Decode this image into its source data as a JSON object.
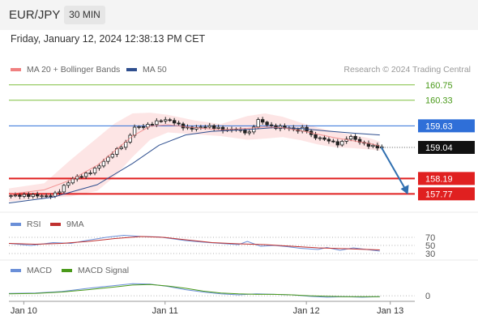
{
  "header": {
    "symbol": "EUR/JPY",
    "timeframe": "30 MIN"
  },
  "datetime": "Friday, January 12, 2024 12:38:13 PM CET",
  "credit": "Research © 2024 Trading Central",
  "colors": {
    "resistance": "#7fbf3f",
    "pivot": "#2f6fd8",
    "support": "#e02020",
    "ma20": "#f08080",
    "ma50": "#2f4f8f",
    "band": "#fde0e0",
    "arrow": "#2f6fb0",
    "rsi": "#6a8fd8",
    "rsi_ma": "#c0302f",
    "macd": "#6a8fd8",
    "macd_signal": "#4a9a1a"
  },
  "chart_data": [
    {
      "type": "candlestick",
      "legend": [
        {
          "label": "MA 20 + Bollinger Bands",
          "color": "#f08080"
        },
        {
          "label": "MA 50",
          "color": "#2f4f8f"
        }
      ],
      "ylim": [
        157.6,
        160.9
      ],
      "levels": [
        {
          "value": 160.75,
          "label": "160.75",
          "role": "resistance"
        },
        {
          "value": 160.33,
          "label": "160.33",
          "role": "resistance"
        },
        {
          "value": 159.63,
          "label": "159.63",
          "role": "pivot"
        },
        {
          "value": 159.04,
          "label": "159.04",
          "role": "last"
        },
        {
          "value": 158.19,
          "label": "158.19",
          "role": "support"
        },
        {
          "value": 157.77,
          "label": "157.77",
          "role": "support"
        }
      ],
      "price_path": [
        [
          0,
          157.72
        ],
        [
          6,
          157.73
        ],
        [
          9,
          157.7
        ],
        [
          11,
          157.79
        ],
        [
          13,
          158.04
        ],
        [
          15,
          158.22
        ],
        [
          17,
          158.28
        ],
        [
          19,
          158.4
        ],
        [
          21,
          158.6
        ],
        [
          23,
          158.82
        ],
        [
          25,
          159.03
        ],
        [
          27,
          159.2
        ],
        [
          28,
          159.58
        ],
        [
          31,
          159.62
        ],
        [
          33,
          159.72
        ],
        [
          35,
          159.8
        ],
        [
          37,
          159.76
        ],
        [
          39,
          159.62
        ],
        [
          41,
          159.55
        ],
        [
          45,
          159.62
        ],
        [
          47,
          159.58
        ],
        [
          49,
          159.5
        ],
        [
          51,
          159.55
        ],
        [
          53,
          159.48
        ],
        [
          55,
          159.42
        ],
        [
          56,
          159.82
        ],
        [
          58,
          159.7
        ],
        [
          60,
          159.58
        ],
        [
          62,
          159.6
        ],
        [
          64,
          159.55
        ],
        [
          66,
          159.48
        ],
        [
          67,
          159.65
        ],
        [
          68,
          159.38
        ],
        [
          70,
          159.3
        ],
        [
          72,
          159.25
        ],
        [
          74,
          159.15
        ],
        [
          75,
          159.12
        ],
        [
          77,
          159.35
        ],
        [
          78,
          159.3
        ],
        [
          80,
          159.15
        ],
        [
          82,
          159.08
        ],
        [
          84,
          159.04
        ]
      ],
      "ma20": [
        [
          0,
          157.76
        ],
        [
          8,
          157.88
        ],
        [
          14,
          158.15
        ],
        [
          20,
          158.55
        ],
        [
          24,
          158.95
        ],
        [
          28,
          159.35
        ],
        [
          32,
          159.62
        ],
        [
          36,
          159.66
        ],
        [
          42,
          159.58
        ],
        [
          48,
          159.52
        ],
        [
          54,
          159.56
        ],
        [
          58,
          159.6
        ],
        [
          62,
          159.58
        ],
        [
          66,
          159.5
        ],
        [
          70,
          159.4
        ],
        [
          74,
          159.3
        ],
        [
          78,
          159.22
        ],
        [
          82,
          159.14
        ],
        [
          84,
          159.08
        ]
      ],
      "band_upper": [
        [
          0,
          157.92
        ],
        [
          8,
          158.06
        ],
        [
          14,
          158.7
        ],
        [
          20,
          159.3
        ],
        [
          24,
          159.7
        ],
        [
          28,
          159.97
        ],
        [
          32,
          159.99
        ],
        [
          36,
          159.93
        ],
        [
          42,
          159.78
        ],
        [
          48,
          159.68
        ],
        [
          54,
          159.9
        ],
        [
          58,
          159.97
        ],
        [
          62,
          159.88
        ],
        [
          66,
          159.72
        ],
        [
          70,
          159.58
        ],
        [
          74,
          159.47
        ],
        [
          78,
          159.38
        ],
        [
          82,
          159.28
        ],
        [
          84,
          159.2
        ]
      ],
      "band_lower": [
        [
          0,
          157.56
        ],
        [
          8,
          157.66
        ],
        [
          14,
          157.7
        ],
        [
          20,
          157.85
        ],
        [
          24,
          158.25
        ],
        [
          28,
          158.78
        ],
        [
          32,
          159.25
        ],
        [
          36,
          159.45
        ],
        [
          42,
          159.4
        ],
        [
          48,
          159.35
        ],
        [
          54,
          159.25
        ],
        [
          58,
          159.28
        ],
        [
          62,
          159.32
        ],
        [
          66,
          159.24
        ],
        [
          70,
          159.12
        ],
        [
          74,
          159.04
        ],
        [
          78,
          159.02
        ],
        [
          82,
          158.98
        ],
        [
          84,
          158.95
        ]
      ],
      "ma50": [
        [
          0,
          157.52
        ],
        [
          10,
          157.68
        ],
        [
          20,
          158.02
        ],
        [
          28,
          158.6
        ],
        [
          34,
          159.1
        ],
        [
          40,
          159.38
        ],
        [
          46,
          159.48
        ],
        [
          54,
          159.53
        ],
        [
          60,
          159.58
        ],
        [
          66,
          159.56
        ],
        [
          72,
          159.49
        ],
        [
          78,
          159.43
        ],
        [
          84,
          159.38
        ]
      ],
      "forecast_arrow": {
        "from": [
          84,
          159.04
        ],
        "to": [
          90,
          157.82
        ]
      }
    },
    {
      "type": "line",
      "legend": [
        {
          "label": "RSI",
          "color": "#6a8fd8"
        },
        {
          "label": "9MA",
          "color": "#c0302f"
        }
      ],
      "ylim": [
        20,
        80
      ],
      "levels": [
        70,
        50,
        30
      ],
      "level_labels": [
        "70",
        "50",
        "30"
      ],
      "series": [
        {
          "name": "RSI",
          "values": [
            [
              0,
              55
            ],
            [
              5,
              50
            ],
            [
              10,
              57
            ],
            [
              14,
              55
            ],
            [
              18,
              63
            ],
            [
              22,
              70
            ],
            [
              26,
              75
            ],
            [
              30,
              72
            ],
            [
              34,
              71
            ],
            [
              36,
              68
            ],
            [
              40,
              62
            ],
            [
              44,
              58
            ],
            [
              48,
              55
            ],
            [
              52,
              52
            ],
            [
              54,
              60
            ],
            [
              57,
              48
            ],
            [
              60,
              50
            ],
            [
              63,
              47
            ],
            [
              66,
              43
            ],
            [
              70,
              40
            ],
            [
              72,
              45
            ],
            [
              75,
              38
            ],
            [
              78,
              44
            ],
            [
              81,
              40
            ],
            [
              84,
              36
            ]
          ]
        },
        {
          "name": "9MA",
          "values": [
            [
              0,
              55
            ],
            [
              6,
              53
            ],
            [
              12,
              55
            ],
            [
              18,
              60
            ],
            [
              24,
              67
            ],
            [
              30,
              72
            ],
            [
              35,
              70
            ],
            [
              40,
              64
            ],
            [
              46,
              57
            ],
            [
              52,
              54
            ],
            [
              58,
              52
            ],
            [
              64,
              48
            ],
            [
              70,
              44
            ],
            [
              76,
              42
            ],
            [
              84,
              39
            ]
          ]
        }
      ]
    },
    {
      "type": "line",
      "legend": [
        {
          "label": "MACD",
          "color": "#6a8fd8"
        },
        {
          "label": "MACD Signal",
          "color": "#4a9a1a"
        }
      ],
      "ylim": [
        -0.05,
        0.35
      ],
      "levels": [
        0
      ],
      "level_labels": [
        "0"
      ],
      "series": [
        {
          "name": "MACD",
          "values": [
            [
              0,
              0.05
            ],
            [
              6,
              0.06
            ],
            [
              12,
              0.09
            ],
            [
              18,
              0.16
            ],
            [
              24,
              0.22
            ],
            [
              28,
              0.26
            ],
            [
              32,
              0.25
            ],
            [
              36,
              0.2
            ],
            [
              40,
              0.13
            ],
            [
              44,
              0.08
            ],
            [
              48,
              0.04
            ],
            [
              52,
              0.02
            ],
            [
              56,
              0.04
            ],
            [
              60,
              0.03
            ],
            [
              64,
              0.02
            ],
            [
              68,
              -0.01
            ],
            [
              72,
              -0.03
            ],
            [
              76,
              -0.02
            ],
            [
              80,
              -0.03
            ],
            [
              84,
              -0.02
            ]
          ]
        },
        {
          "name": "MACD Signal",
          "values": [
            [
              0,
              0.04
            ],
            [
              6,
              0.05
            ],
            [
              12,
              0.08
            ],
            [
              18,
              0.13
            ],
            [
              24,
              0.19
            ],
            [
              28,
              0.23
            ],
            [
              32,
              0.24
            ],
            [
              36,
              0.21
            ],
            [
              40,
              0.16
            ],
            [
              44,
              0.1
            ],
            [
              48,
              0.06
            ],
            [
              52,
              0.04
            ],
            [
              56,
              0.03
            ],
            [
              60,
              0.03
            ],
            [
              64,
              0.02
            ],
            [
              68,
              0.0
            ],
            [
              72,
              -0.01
            ],
            [
              76,
              -0.02
            ],
            [
              80,
              -0.02
            ],
            [
              84,
              -0.02
            ]
          ]
        }
      ]
    }
  ],
  "x_axis": {
    "ticks": [
      {
        "label": "Jan 10",
        "x": 3
      },
      {
        "label": "Jan 11",
        "x": 35
      },
      {
        "label": "Jan 12",
        "x": 67
      },
      {
        "label": "Jan 13",
        "x": 86
      }
    ]
  }
}
